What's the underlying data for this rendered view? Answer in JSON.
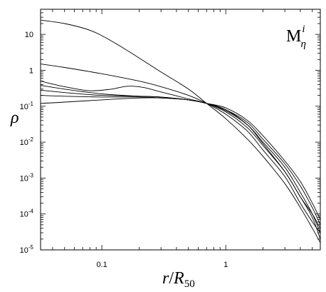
{
  "chart_data": {
    "type": "line",
    "title": "",
    "panel_label": {
      "base": "M",
      "sup": "i",
      "sub": "η"
    },
    "xlabel": {
      "main": "r",
      "slash": "/",
      "symbol": "R",
      "sub": "50"
    },
    "ylabel": "ρ",
    "x_scale": "log",
    "y_scale": "log",
    "xlim": [
      0.032,
      5.8
    ],
    "ylim": [
      1e-05,
      50
    ],
    "grid": false,
    "legend": "none",
    "x_ticks": [
      {
        "value": 0.1,
        "label": "0.1"
      },
      {
        "value": 1,
        "label": "1"
      }
    ],
    "y_ticks": [
      {
        "value": 10,
        "label": "10",
        "exp": ""
      },
      {
        "value": 1,
        "label": "1",
        "exp": ""
      },
      {
        "value": 0.1,
        "label": "10",
        "exp": "-1"
      },
      {
        "value": 0.01,
        "label": "10",
        "exp": "-2"
      },
      {
        "value": 0.001,
        "label": "10",
        "exp": "-3"
      },
      {
        "value": 0.0001,
        "label": "10",
        "exp": "-4"
      },
      {
        "value": 1e-05,
        "label": "10",
        "exp": "-5"
      }
    ],
    "series": [
      {
        "x": [
          0.032,
          0.05,
          0.08,
          0.12,
          0.2,
          0.3,
          0.5,
          0.7,
          1.0,
          1.5,
          2.0,
          3.0,
          4.0,
          5.0,
          5.8
        ],
        "y": [
          25,
          20,
          13,
          6.5,
          2.2,
          0.9,
          0.3,
          0.12,
          0.045,
          0.012,
          0.004,
          0.0007,
          0.00015,
          4e-05,
          1.6e-05
        ]
      },
      {
        "x": [
          0.032,
          0.05,
          0.1,
          0.2,
          0.3,
          0.5,
          0.7,
          1.0,
          1.5,
          2.0,
          3.0,
          4.0,
          5.0,
          5.8
        ],
        "y": [
          1.5,
          1.2,
          0.8,
          0.5,
          0.35,
          0.2,
          0.12,
          0.06,
          0.02,
          0.006,
          0.0011,
          0.0002,
          6e-05,
          3e-05
        ]
      },
      {
        "x": [
          0.032,
          0.05,
          0.08,
          0.12,
          0.15,
          0.18,
          0.22,
          0.3,
          0.5,
          0.7,
          1.0,
          1.5,
          2.0,
          3.0,
          4.0,
          5.0,
          5.8
        ],
        "y": [
          0.5,
          0.35,
          0.27,
          0.3,
          0.35,
          0.36,
          0.33,
          0.25,
          0.16,
          0.12,
          0.07,
          0.025,
          0.008,
          0.0015,
          0.0003,
          0.0001,
          4e-05
        ]
      },
      {
        "x": [
          0.032,
          0.05,
          0.1,
          0.2,
          0.3,
          0.5,
          0.7,
          1.0,
          1.5,
          2.0,
          3.0,
          4.0,
          5.0,
          5.8
        ],
        "y": [
          0.38,
          0.3,
          0.22,
          0.19,
          0.18,
          0.15,
          0.12,
          0.075,
          0.03,
          0.01,
          0.002,
          0.0004,
          0.0001,
          3e-05
        ]
      },
      {
        "x": [
          0.032,
          0.05,
          0.1,
          0.2,
          0.3,
          0.5,
          0.7,
          1.0,
          1.5,
          2.0,
          3.0,
          4.0,
          5.0,
          5.8
        ],
        "y": [
          0.28,
          0.24,
          0.2,
          0.19,
          0.18,
          0.15,
          0.12,
          0.08,
          0.035,
          0.012,
          0.0025,
          0.0006,
          0.00015,
          5e-05
        ]
      },
      {
        "x": [
          0.032,
          0.05,
          0.1,
          0.2,
          0.3,
          0.5,
          0.7,
          1.0,
          1.5,
          2.0,
          3.0,
          4.0,
          5.0,
          5.8
        ],
        "y": [
          0.2,
          0.19,
          0.18,
          0.18,
          0.17,
          0.15,
          0.12,
          0.09,
          0.04,
          0.015,
          0.003,
          0.0008,
          0.0002,
          7e-05
        ]
      },
      {
        "x": [
          0.032,
          0.05,
          0.1,
          0.2,
          0.3,
          0.5,
          0.7,
          1.0,
          1.5,
          2.0,
          3.0,
          4.0,
          5.0,
          5.8
        ],
        "y": [
          0.12,
          0.13,
          0.15,
          0.17,
          0.17,
          0.15,
          0.12,
          0.08,
          0.03,
          0.009,
          0.0015,
          0.0003,
          8e-05,
          2e-05
        ]
      }
    ]
  }
}
